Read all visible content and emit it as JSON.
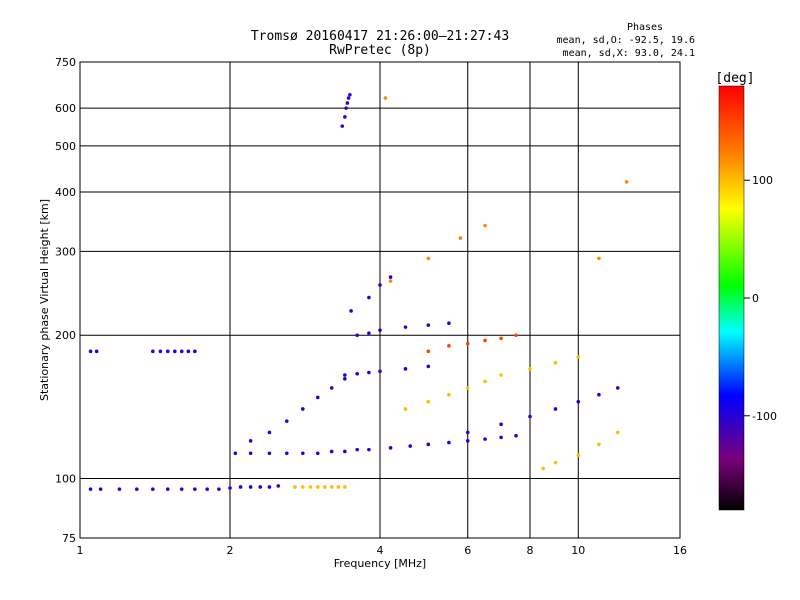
{
  "chart_data": {
    "type": "scatter",
    "title": "Tromsø 20160417 21:26:00–21:27:43",
    "subtitle": "RwPretec (8p)",
    "xlabel": "Frequency [MHz]",
    "ylabel": "Stationary phase Virtual Height [km]",
    "x_scale": "log",
    "y_scale": "log",
    "xlim": [
      1,
      16
    ],
    "ylim": [
      75,
      750
    ],
    "x_ticks": [
      1,
      2,
      4,
      6,
      8,
      10,
      16
    ],
    "y_ticks": [
      75,
      100,
      200,
      300,
      400,
      500,
      600,
      750
    ],
    "grid": true,
    "stats": {
      "header": "Phases",
      "line_o": "mean, sd,O: -92.5, 19.6",
      "line_x": "mean, sd,X:  93.0, 24.1"
    },
    "colorbar": {
      "label": "[deg]",
      "min": -180,
      "max": 180,
      "ticks": [
        100,
        0,
        -100
      ]
    },
    "series": [
      {
        "x": [
          1.05,
          1.1,
          1.2,
          1.3,
          1.4,
          1.5,
          1.6,
          1.7,
          1.8,
          1.9,
          2.0,
          2.1,
          2.2,
          2.3,
          2.4,
          2.5
        ],
        "y": [
          95,
          95,
          95,
          95,
          95,
          95,
          95,
          95,
          95,
          95,
          95.5,
          96,
          96,
          96,
          96,
          96.5
        ],
        "phase": -100
      },
      {
        "x": [
          2.7,
          2.8,
          2.9,
          3.0,
          3.1,
          3.2,
          3.3,
          3.4
        ],
        "y": [
          96,
          96,
          96,
          96,
          96,
          96,
          96,
          96
        ],
        "phase": 100
      },
      {
        "x": [
          1.05,
          1.08,
          1.4,
          1.45,
          1.5,
          1.55,
          1.6,
          1.65,
          1.7
        ],
        "y": [
          185,
          185,
          185,
          185,
          185,
          185,
          185,
          185,
          185
        ],
        "phase": -100
      },
      {
        "x": [
          2.05,
          2.2,
          2.4,
          2.6,
          2.8,
          3.0,
          3.2,
          3.4,
          3.6,
          3.8,
          4.2,
          4.6,
          5.0,
          5.5,
          6.0,
          6.5,
          7.0,
          7.5
        ],
        "y": [
          113,
          113,
          113,
          113,
          113,
          113,
          114,
          114,
          115,
          115,
          116,
          117,
          118,
          119,
          120,
          121,
          122,
          123
        ],
        "phase": -100
      },
      {
        "x": [
          2.2,
          2.4,
          2.6,
          2.8,
          3.0,
          3.2,
          3.4
        ],
        "y": [
          120,
          125,
          132,
          140,
          148,
          155,
          162
        ],
        "phase": -100
      },
      {
        "x": [
          3.4,
          3.6,
          3.8,
          4.0,
          4.5,
          5.0
        ],
        "y": [
          165,
          166,
          167,
          168,
          170,
          172
        ],
        "phase": -100
      },
      {
        "x": [
          3.6,
          3.8,
          4.0,
          4.5,
          5.0,
          5.5
        ],
        "y": [
          200,
          202,
          205,
          208,
          210,
          212
        ],
        "phase": -100
      },
      {
        "x": [
          3.5,
          3.8,
          4.0,
          4.2
        ],
        "y": [
          225,
          240,
          255,
          265
        ],
        "phase": -100
      },
      {
        "x": [
          3.36,
          3.4,
          3.42,
          3.44,
          3.46,
          3.48
        ],
        "y": [
          550,
          575,
          600,
          615,
          630,
          640
        ],
        "phase": -100
      },
      {
        "x": [
          5.0,
          5.5,
          6.0,
          6.5,
          7.0,
          7.5
        ],
        "y": [
          185,
          190,
          192,
          195,
          197,
          200
        ],
        "phase": 150
      },
      {
        "x": [
          4.5,
          5.0,
          5.5,
          6.0,
          6.5,
          7.0,
          8.0,
          9.0,
          10.0
        ],
        "y": [
          140,
          145,
          150,
          155,
          160,
          165,
          170,
          175,
          180
        ],
        "phase": 100
      },
      {
        "x": [
          6.0,
          7.0,
          8.0,
          9.0,
          10.0,
          11.0,
          12.0
        ],
        "y": [
          125,
          130,
          135,
          140,
          145,
          150,
          155
        ],
        "phase": -100
      },
      {
        "x": [
          8.5,
          9.0,
          10.0,
          11.0,
          12.0
        ],
        "y": [
          105,
          108,
          112,
          118,
          125
        ],
        "phase": 100
      },
      {
        "x": [
          4.2,
          5.0,
          5.8,
          6.5
        ],
        "y": [
          260,
          290,
          320,
          340
        ],
        "phase": 120
      },
      {
        "x": [
          4.1,
          11.0,
          12.5
        ],
        "y": [
          630,
          290,
          420
        ],
        "phase": 120
      }
    ]
  }
}
